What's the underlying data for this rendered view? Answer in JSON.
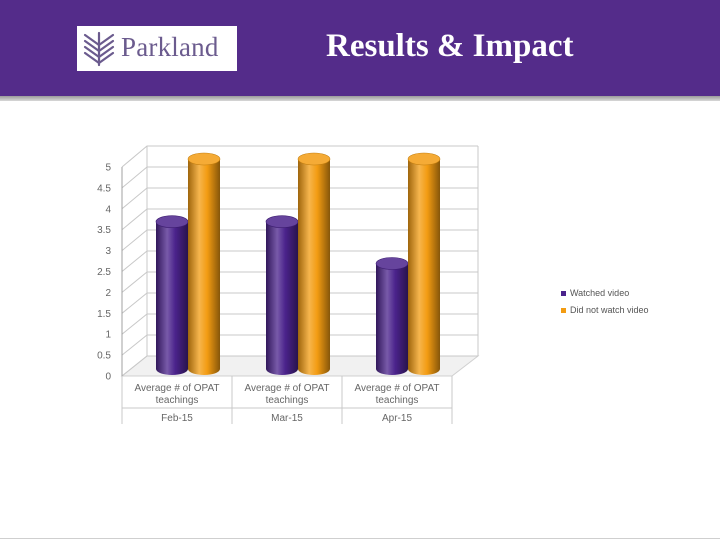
{
  "header": {
    "logo_text": "Parkland",
    "title": "Results & Impact",
    "logo_icon": "parkland-leaf-icon",
    "background_color": "#542c8a"
  },
  "chart_data": {
    "type": "bar",
    "style": "3d-cylinder",
    "categories": [
      {
        "lines": [
          "Average # of OPAT",
          "teachings"
        ],
        "period": "Feb-15"
      },
      {
        "lines": [
          "Average # of OPAT",
          "teachings"
        ],
        "period": "Mar-15"
      },
      {
        "lines": [
          "Average # of OPAT",
          "teachings"
        ],
        "period": "Apr-15"
      }
    ],
    "series": [
      {
        "name": "Watched video",
        "values": [
          3.5,
          3.5,
          2.5
        ],
        "color": "#4b238c"
      },
      {
        "name": "Did not watch video",
        "values": [
          5,
          5,
          5
        ],
        "color": "#f39c12"
      }
    ],
    "ylim": [
      0,
      5
    ],
    "yticks": [
      "0",
      "0.5",
      "1",
      "1.5",
      "2",
      "2.5",
      "3",
      "3.5",
      "4",
      "4.5",
      "5"
    ],
    "grid": true,
    "legend_position": "right"
  }
}
